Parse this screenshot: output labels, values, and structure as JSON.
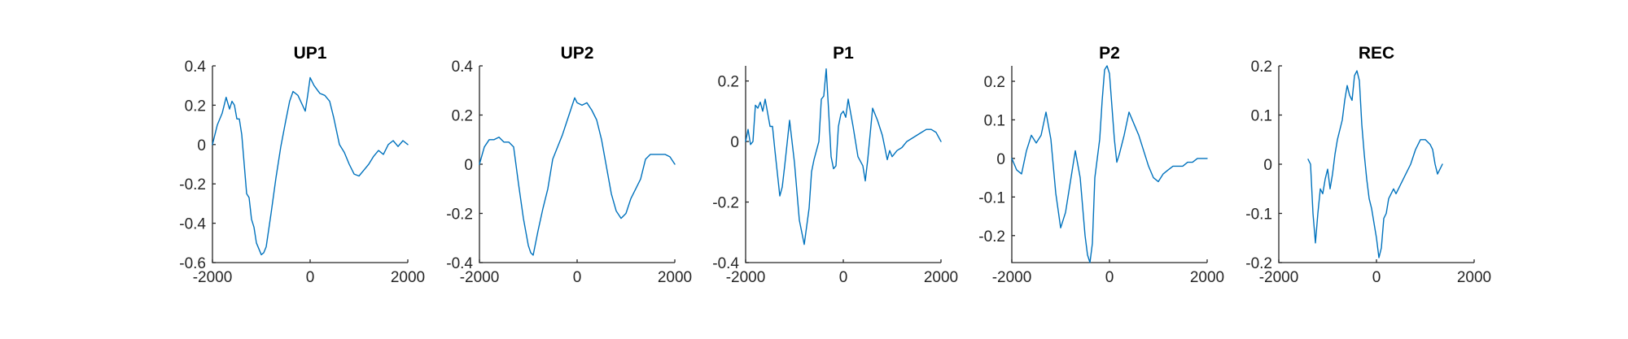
{
  "colors": {
    "series": "#0072BD",
    "axis": "#262626"
  },
  "chart_data": [
    {
      "type": "line",
      "title": "UP1",
      "xlim": [
        -2000,
        2000
      ],
      "ylim": [
        -0.6,
        0.4
      ],
      "xticks": [
        -2000,
        0,
        2000
      ],
      "yticks": [
        -0.6,
        -0.4,
        -0.2,
        0,
        0.2,
        0.4
      ],
      "xtick_labels": [
        "-2000",
        "0",
        "2000"
      ],
      "ytick_labels": [
        "-0.6",
        "-0.4",
        "-0.2",
        "0",
        "0.2",
        "0.4"
      ],
      "series": [
        {
          "x": [
            -2000,
            -1900,
            -1800,
            -1720,
            -1650,
            -1600,
            -1550,
            -1500,
            -1450,
            -1400,
            -1300,
            -1250,
            -1200,
            -1150,
            -1100,
            -1000,
            -950,
            -900,
            -800,
            -700,
            -600,
            -500,
            -420,
            -350,
            -250,
            -100,
            -50,
            0,
            80,
            200,
            300,
            400,
            480,
            600,
            700,
            800,
            900,
            1000,
            1100,
            1200,
            1300,
            1400,
            1500,
            1600,
            1700,
            1800,
            1900,
            2000
          ],
          "y": [
            0.0,
            0.1,
            0.16,
            0.24,
            0.18,
            0.22,
            0.2,
            0.13,
            0.13,
            0.05,
            -0.25,
            -0.27,
            -0.38,
            -0.42,
            -0.5,
            -0.56,
            -0.55,
            -0.52,
            -0.35,
            -0.17,
            -0.01,
            0.12,
            0.22,
            0.27,
            0.25,
            0.17,
            0.25,
            0.34,
            0.3,
            0.26,
            0.25,
            0.22,
            0.14,
            0.0,
            -0.04,
            -0.1,
            -0.15,
            -0.16,
            -0.13,
            -0.1,
            -0.06,
            -0.03,
            -0.05,
            0.0,
            0.02,
            -0.01,
            0.02,
            0.0
          ]
        }
      ]
    },
    {
      "type": "line",
      "title": "UP2",
      "xlim": [
        -2000,
        2000
      ],
      "ylim": [
        -0.4,
        0.4
      ],
      "xticks": [
        -2000,
        0,
        2000
      ],
      "yticks": [
        -0.4,
        -0.2,
        0,
        0.2,
        0.4
      ],
      "xtick_labels": [
        "-2000",
        "0",
        "2000"
      ],
      "ytick_labels": [
        "-0.4",
        "-0.2",
        "0",
        "0.2",
        "0.4"
      ],
      "series": [
        {
          "x": [
            -2000,
            -1900,
            -1800,
            -1700,
            -1600,
            -1500,
            -1400,
            -1300,
            -1200,
            -1100,
            -1000,
            -950,
            -900,
            -800,
            -700,
            -600,
            -500,
            -400,
            -300,
            -200,
            -100,
            -50,
            0,
            100,
            200,
            300,
            400,
            500,
            600,
            700,
            800,
            900,
            1000,
            1100,
            1200,
            1300,
            1400,
            1500,
            1600,
            1700,
            1800,
            1900,
            2000
          ],
          "y": [
            0.0,
            0.07,
            0.1,
            0.1,
            0.11,
            0.09,
            0.09,
            0.07,
            -0.08,
            -0.22,
            -0.33,
            -0.36,
            -0.37,
            -0.27,
            -0.18,
            -0.1,
            0.02,
            0.07,
            0.12,
            0.18,
            0.24,
            0.27,
            0.25,
            0.24,
            0.25,
            0.22,
            0.18,
            0.1,
            -0.01,
            -0.12,
            -0.19,
            -0.22,
            -0.2,
            -0.14,
            -0.1,
            -0.06,
            0.02,
            0.04,
            0.04,
            0.04,
            0.04,
            0.03,
            0.0
          ]
        }
      ]
    },
    {
      "type": "line",
      "title": "P1",
      "xlim": [
        -2000,
        2000
      ],
      "ylim": [
        -0.4,
        0.25
      ],
      "xticks": [
        -2000,
        0,
        2000
      ],
      "yticks": [
        -0.4,
        -0.2,
        0,
        0.2
      ],
      "xtick_labels": [
        "-2000",
        "0",
        "2000"
      ],
      "ytick_labels": [
        "-0.4",
        "-0.2",
        "0",
        "0.2"
      ],
      "series": [
        {
          "x": [
            -2000,
            -1950,
            -1900,
            -1850,
            -1800,
            -1750,
            -1700,
            -1650,
            -1600,
            -1500,
            -1450,
            -1400,
            -1300,
            -1250,
            -1200,
            -1100,
            -1050,
            -1000,
            -900,
            -800,
            -700,
            -650,
            -600,
            -500,
            -450,
            -400,
            -350,
            -300,
            -250,
            -200,
            -150,
            -100,
            -50,
            0,
            50,
            100,
            200,
            300,
            400,
            450,
            500,
            600,
            700,
            800,
            850,
            900,
            950,
            1000,
            1100,
            1200,
            1300,
            1400,
            1500,
            1600,
            1700,
            1800,
            1900,
            2000
          ],
          "y": [
            0.0,
            0.04,
            -0.01,
            0.0,
            0.12,
            0.11,
            0.13,
            0.1,
            0.14,
            0.05,
            0.05,
            -0.03,
            -0.18,
            -0.15,
            -0.08,
            0.07,
            0.0,
            -0.07,
            -0.26,
            -0.34,
            -0.22,
            -0.1,
            -0.06,
            0.0,
            0.14,
            0.15,
            0.24,
            0.1,
            -0.05,
            -0.09,
            -0.08,
            0.05,
            0.09,
            0.1,
            0.08,
            0.14,
            0.05,
            -0.05,
            -0.08,
            -0.13,
            -0.06,
            0.11,
            0.07,
            0.02,
            -0.02,
            -0.06,
            -0.03,
            -0.05,
            -0.03,
            -0.02,
            0.0,
            0.01,
            0.02,
            0.03,
            0.04,
            0.04,
            0.03,
            0.0
          ]
        }
      ]
    },
    {
      "type": "line",
      "title": "P2",
      "xlim": [
        -2000,
        2000
      ],
      "ylim": [
        -0.27,
        0.24
      ],
      "xticks": [
        -2000,
        0,
        2000
      ],
      "yticks": [
        -0.2,
        -0.1,
        0,
        0.1,
        0.2
      ],
      "xtick_labels": [
        "-2000",
        "0",
        "2000"
      ],
      "ytick_labels": [
        "-0.2",
        "-0.1",
        "0",
        "0.1",
        "0.2"
      ],
      "series": [
        {
          "x": [
            -2000,
            -1900,
            -1800,
            -1700,
            -1600,
            -1500,
            -1400,
            -1300,
            -1200,
            -1100,
            -1000,
            -900,
            -800,
            -700,
            -600,
            -500,
            -450,
            -400,
            -350,
            -300,
            -200,
            -150,
            -100,
            -50,
            0,
            100,
            150,
            200,
            300,
            400,
            500,
            600,
            700,
            800,
            900,
            1000,
            1100,
            1200,
            1300,
            1400,
            1500,
            1600,
            1700,
            1800,
            1900,
            2000
          ],
          "y": [
            0.0,
            -0.03,
            -0.04,
            0.02,
            0.06,
            0.04,
            0.06,
            0.12,
            0.05,
            -0.09,
            -0.18,
            -0.14,
            -0.06,
            0.02,
            -0.05,
            -0.2,
            -0.25,
            -0.27,
            -0.22,
            -0.05,
            0.05,
            0.15,
            0.23,
            0.24,
            0.22,
            0.05,
            -0.01,
            0.01,
            0.06,
            0.12,
            0.09,
            0.06,
            0.02,
            -0.02,
            -0.05,
            -0.06,
            -0.04,
            -0.03,
            -0.02,
            -0.02,
            -0.02,
            -0.01,
            -0.01,
            0.0,
            0.0,
            0.0
          ]
        }
      ]
    },
    {
      "type": "line",
      "title": "REC",
      "xlim": [
        -2000,
        2000
      ],
      "ylim": [
        -0.2,
        0.2
      ],
      "xticks": [
        -2000,
        0,
        2000
      ],
      "yticks": [
        -0.2,
        -0.1,
        0,
        0.1,
        0.2
      ],
      "xtick_labels": [
        "-2000",
        "0",
        "2000"
      ],
      "ytick_labels": [
        "-0.2",
        "-0.1",
        "0",
        "0.1",
        "0.2"
      ],
      "series": [
        {
          "x": [
            -1400,
            -1350,
            -1300,
            -1250,
            -1200,
            -1150,
            -1100,
            -1050,
            -1000,
            -950,
            -900,
            -850,
            -800,
            -700,
            -650,
            -600,
            -550,
            -500,
            -450,
            -400,
            -350,
            -300,
            -250,
            -200,
            -150,
            -100,
            -50,
            0,
            50,
            100,
            150,
            200,
            250,
            300,
            350,
            400,
            450,
            500,
            600,
            700,
            800,
            900,
            1000,
            1100,
            1150,
            1200,
            1250,
            1300,
            1350
          ],
          "y": [
            0.01,
            0.0,
            -0.1,
            -0.16,
            -0.1,
            -0.05,
            -0.06,
            -0.03,
            -0.01,
            -0.05,
            -0.02,
            0.02,
            0.05,
            0.09,
            0.13,
            0.16,
            0.14,
            0.13,
            0.18,
            0.19,
            0.17,
            0.08,
            0.02,
            -0.03,
            -0.07,
            -0.09,
            -0.12,
            -0.15,
            -0.19,
            -0.17,
            -0.11,
            -0.1,
            -0.07,
            -0.06,
            -0.05,
            -0.06,
            -0.05,
            -0.04,
            -0.02,
            0.0,
            0.03,
            0.05,
            0.05,
            0.04,
            0.03,
            0.0,
            -0.02,
            -0.01,
            0.0
          ]
        }
      ]
    }
  ]
}
